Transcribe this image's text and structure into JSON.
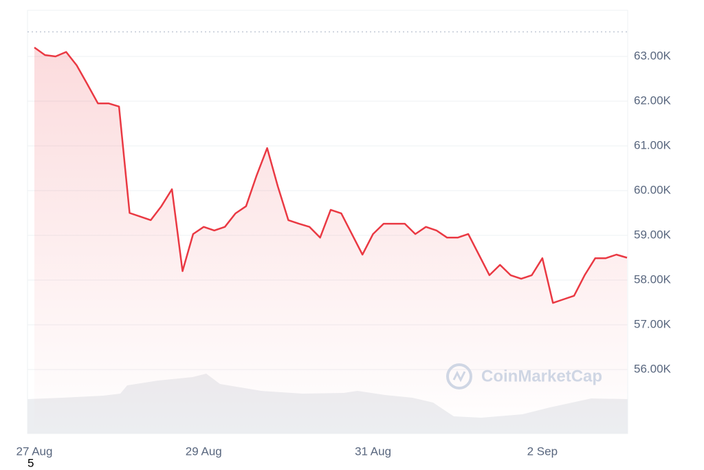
{
  "chart_data": {
    "type": "line",
    "categories": [
      "27 Aug",
      null,
      null,
      null,
      null,
      null,
      null,
      null,
      null,
      null,
      null,
      null,
      null,
      null,
      null,
      null,
      "29 Aug",
      null,
      null,
      null,
      null,
      null,
      null,
      null,
      null,
      null,
      null,
      null,
      null,
      null,
      null,
      null,
      "31 Aug",
      null,
      null,
      null,
      null,
      null,
      null,
      null,
      null,
      null,
      null,
      null,
      null,
      null,
      null,
      null,
      "2 Sep",
      null,
      null,
      null,
      null,
      null,
      null,
      null,
      null
    ],
    "values": [
      63200,
      63030,
      63000,
      63100,
      62800,
      62380,
      61950,
      61950,
      61880,
      59500,
      59420,
      59340,
      59650,
      60030,
      58200,
      59030,
      59190,
      59110,
      59190,
      59490,
      59650,
      60340,
      60950,
      60100,
      59340,
      59260,
      59190,
      58950,
      59570,
      59490,
      59030,
      58570,
      59030,
      59260,
      59260,
      59260,
      59030,
      59190,
      59110,
      58950,
      58950,
      59030,
      58570,
      58110,
      58340,
      58110,
      58030,
      58110,
      58490,
      57490,
      57570,
      57650,
      58110,
      58490,
      58490,
      58570,
      58500
    ],
    "color": "#ea3943",
    "reference_line": 63550,
    "ylim": [
      54570,
      64030
    ],
    "yticks": [
      {
        "value": 56000,
        "label": "56.00K"
      },
      {
        "value": 57000,
        "label": "57.00K"
      },
      {
        "value": 58000,
        "label": "58.00K"
      },
      {
        "value": 59000,
        "label": "59.00K"
      },
      {
        "value": 60000,
        "label": "60.00K"
      },
      {
        "value": 61000,
        "label": "61.00K"
      },
      {
        "value": 62000,
        "label": "62.00K"
      },
      {
        "value": 63000,
        "label": "63.00K"
      }
    ],
    "grid": true,
    "watermark": "CoinMarketCap",
    "footnote": "5"
  }
}
